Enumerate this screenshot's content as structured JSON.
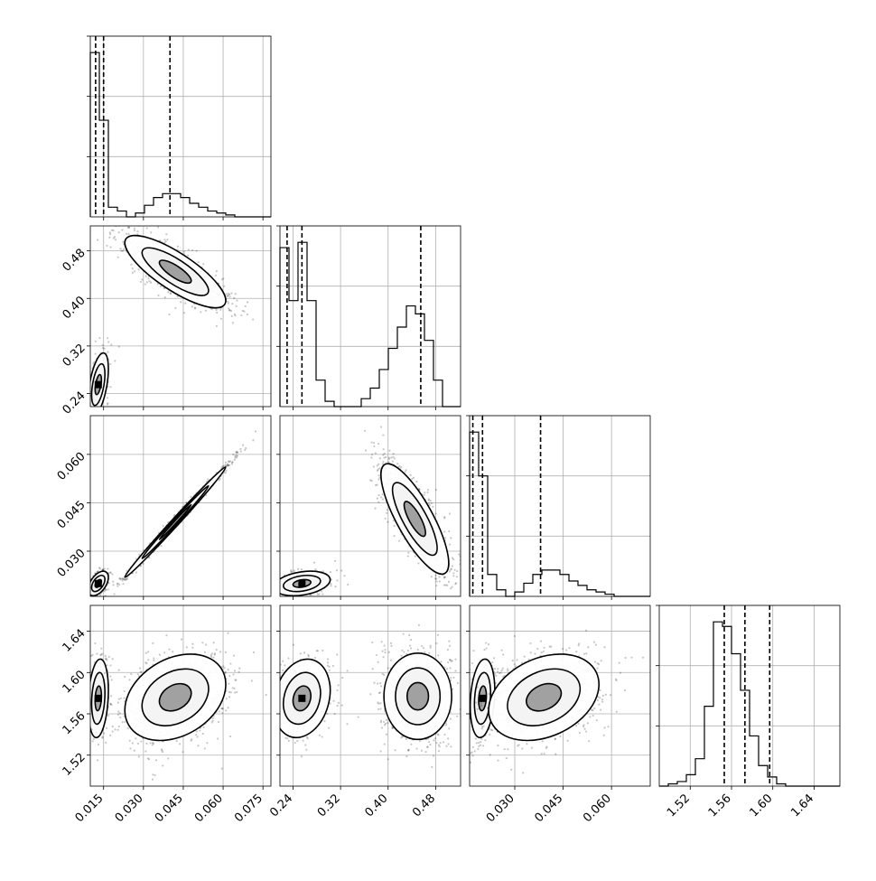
{
  "chart_data": {
    "type": "corner",
    "parameters": [
      {
        "id": "p1",
        "range": [
          0.01,
          0.078
        ],
        "ticks": [
          "0.015",
          "0.030",
          "0.045",
          "0.060",
          "0.075"
        ],
        "quantiles": [
          0.012,
          0.015,
          0.04
        ]
      },
      {
        "id": "p2",
        "range": [
          0.218,
          0.522
        ],
        "ticks": [
          "0.24",
          "0.32",
          "0.40",
          "0.48"
        ],
        "quantiles": [
          0.23,
          0.255,
          0.455
        ]
      },
      {
        "id": "p3",
        "range": [
          0.016,
          0.072
        ],
        "ticks": [
          "0.030",
          "0.045",
          "0.060"
        ],
        "quantiles": [
          0.017,
          0.02,
          0.038
        ]
      },
      {
        "id": "p4",
        "range": [
          1.49,
          1.665
        ],
        "ticks": [
          "1.52",
          "1.56",
          "1.60",
          "1.64"
        ],
        "quantiles": [
          1.553,
          1.573,
          1.597
        ]
      }
    ],
    "histograms": [
      {
        "param": 0,
        "values": [
          85,
          50,
          5,
          3,
          0,
          2,
          6,
          10,
          12,
          12,
          10,
          7,
          5,
          3,
          2,
          1,
          0,
          0,
          0,
          0
        ]
      },
      {
        "param": 1,
        "values": [
          60,
          40,
          62,
          40,
          10,
          2,
          0,
          0,
          0,
          3,
          7,
          14,
          22,
          30,
          38,
          35,
          25,
          10,
          0,
          0
        ]
      },
      {
        "param": 2,
        "values": [
          75,
          55,
          10,
          3,
          0,
          2,
          6,
          10,
          12,
          12,
          10,
          7,
          5,
          3,
          2,
          1,
          0,
          0,
          0,
          0
        ]
      },
      {
        "param": 3,
        "values": [
          0,
          1,
          2,
          5,
          12,
          35,
          72,
          70,
          58,
          42,
          22,
          9,
          4,
          1,
          0,
          0,
          0,
          0,
          0,
          0
        ]
      }
    ],
    "joint_clusters": [
      {
        "x": 0,
        "y": 1,
        "clusters": [
          {
            "mx": 0.013,
            "my": 0.255,
            "sx": 0.002,
            "sy": 0.028,
            "rho": 0.5,
            "n": 350
          },
          {
            "mx": 0.042,
            "my": 0.445,
            "sx": 0.01,
            "sy": 0.032,
            "rho": -0.8,
            "n": 900
          }
        ]
      },
      {
        "x": 0,
        "y": 2,
        "clusters": [
          {
            "mx": 0.013,
            "my": 0.02,
            "sx": 0.002,
            "sy": 0.002,
            "rho": 0.5,
            "n": 350
          },
          {
            "mx": 0.042,
            "my": 0.039,
            "sx": 0.01,
            "sy": 0.009,
            "rho": 0.995,
            "n": 900
          }
        ]
      },
      {
        "x": 0,
        "y": 3,
        "clusters": [
          {
            "mx": 0.013,
            "my": 1.575,
            "sx": 0.002,
            "sy": 0.02,
            "rho": 0.2,
            "n": 350
          },
          {
            "mx": 0.042,
            "my": 1.576,
            "sx": 0.01,
            "sy": 0.022,
            "rho": 0.3,
            "n": 900
          }
        ]
      },
      {
        "x": 1,
        "y": 2,
        "clusters": [
          {
            "mx": 0.255,
            "my": 0.02,
            "sx": 0.025,
            "sy": 0.002,
            "rho": 0.3,
            "n": 350
          },
          {
            "mx": 0.445,
            "my": 0.04,
            "sx": 0.03,
            "sy": 0.009,
            "rho": -0.8,
            "n": 900
          }
        ]
      },
      {
        "x": 1,
        "y": 3,
        "clusters": [
          {
            "mx": 0.255,
            "my": 1.575,
            "sx": 0.025,
            "sy": 0.02,
            "rho": 0.2,
            "n": 350
          },
          {
            "mx": 0.45,
            "my": 1.577,
            "sx": 0.03,
            "sy": 0.022,
            "rho": 0.0,
            "n": 900
          }
        ]
      },
      {
        "x": 2,
        "y": 3,
        "clusters": [
          {
            "mx": 0.02,
            "my": 1.575,
            "sx": 0.002,
            "sy": 0.02,
            "rho": 0.2,
            "n": 350
          },
          {
            "mx": 0.039,
            "my": 1.576,
            "sx": 0.009,
            "sy": 0.022,
            "rho": 0.3,
            "n": 900
          }
        ]
      }
    ],
    "grid": true
  }
}
